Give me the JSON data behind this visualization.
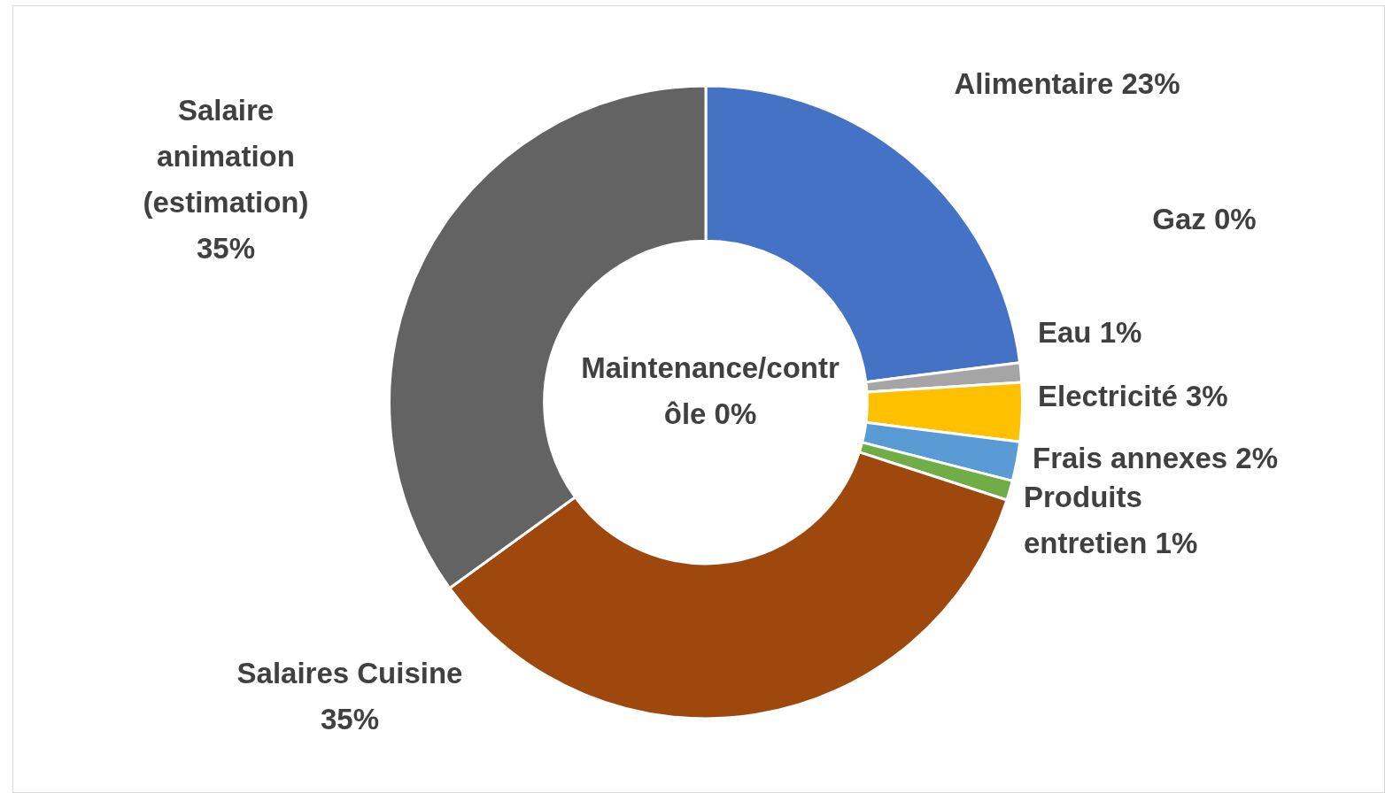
{
  "chart_data": {
    "type": "donut",
    "categories": [
      "Alimentaire",
      "Gaz",
      "Eau",
      "Electricité",
      "Frais annexes",
      "Produits entretien",
      "Maintenance/contrôle",
      "Salaires Cuisine",
      "Salaire animation (estimation)"
    ],
    "values": [
      23,
      0,
      1,
      3,
      2,
      1,
      0,
      35,
      35
    ],
    "value_labels": [
      "23%",
      "0%",
      "1%",
      "3%",
      "2%",
      "1%",
      "0%",
      "35%",
      "35%"
    ],
    "colors": [
      "#4472c4",
      "#ed7d31",
      "#a5a5a5",
      "#ffc000",
      "#5b9bd5",
      "#70ad47",
      "#264478",
      "#9e480e",
      "#636363"
    ],
    "legend": false
  }
}
